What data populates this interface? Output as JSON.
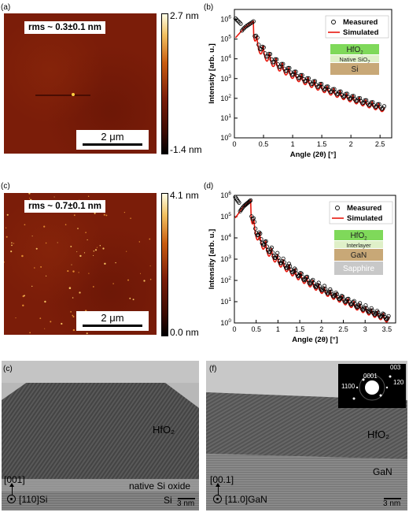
{
  "panels": {
    "a": {
      "label": "(a)",
      "rms": "rms ~ 0.3±0.1 nm",
      "scale": "2 μm",
      "cmax": "2.7 nm",
      "cmin": "-1.4 nm"
    },
    "c_afm": {
      "label": "(c)",
      "rms": "rms ~ 0.7±0.1 nm",
      "scale": "2 μm",
      "cmax": "4.1 nm",
      "cmin": "0.0 nm"
    },
    "b": {
      "label": "(b)"
    },
    "d": {
      "label": "(d)"
    },
    "c_tem": {
      "label": "(c)",
      "material": "HfO₂",
      "oxide": "native Si oxide",
      "substrate": "Si",
      "dir_up": "[001]",
      "dir_in": "[110]Si",
      "scale": "3 nm"
    },
    "f": {
      "label": "(f)",
      "material": "HfO₂",
      "substrate": "GaN",
      "dir_up": "[00.1]",
      "dir_in": "[11.0]GaN",
      "scale": "3 nm",
      "diff": {
        "s1": "003",
        "s2": "120",
        "s3": "0001",
        "s4": "1100"
      }
    }
  },
  "chart_data": [
    {
      "type": "line",
      "panel": "b",
      "xlabel": "Angle (2θ) [°]",
      "ylabel": "Intensity [arb. u.]",
      "xlim": [
        0,
        2.7
      ],
      "ylim_log10": [
        0,
        6.5
      ],
      "yscale": "log",
      "xticks": [
        "0",
        "0.5",
        "1",
        "1.5",
        "2",
        "2.5"
      ],
      "yticks": [
        "10^0",
        "10^1",
        "10^2",
        "10^3",
        "10^4",
        "10^5",
        "10^6"
      ],
      "legend": [
        "Measured",
        "Simulated"
      ],
      "stack": [
        "HfO2",
        "Native SiO2",
        "Si"
      ],
      "critical_angle": 0.33,
      "peak_intensity": 800000,
      "fringe_period": 0.11,
      "end_intensity": 40,
      "x_end": 2.58
    },
    {
      "type": "line",
      "panel": "d",
      "xlabel": "Angle (2θ) [°]",
      "ylabel": "Intensity [arb. u.]",
      "xlim": [
        0,
        3.7
      ],
      "ylim_log10": [
        0,
        6
      ],
      "yscale": "log",
      "xticks": [
        "0",
        "0.5",
        "1",
        "1.5",
        "2",
        "2.5",
        "3",
        "3.5"
      ],
      "yticks": [
        "10^0",
        "10^1",
        "10^2",
        "10^3",
        "10^4",
        "10^5",
        "10^6"
      ],
      "legend": [
        "Measured",
        "Simulated"
      ],
      "stack": [
        "HfO2",
        "Interlayer",
        "GaN",
        "Sapphire"
      ],
      "critical_angle": 0.38,
      "peak_intensity": 600000,
      "fringe_period": 0.135,
      "end_intensity": 2,
      "x_end": 3.55
    }
  ]
}
